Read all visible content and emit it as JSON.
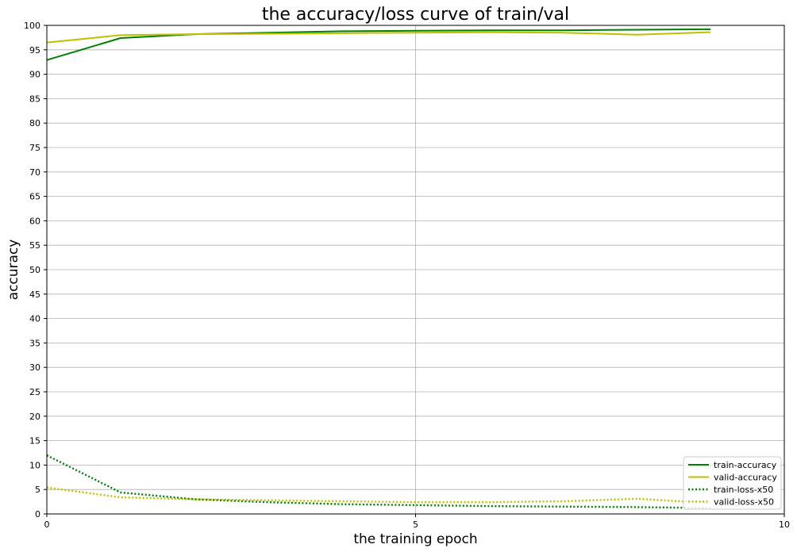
{
  "chart_data": {
    "type": "line",
    "title": "the accuracy/loss curve of train/val",
    "xlabel": "the training epoch",
    "ylabel": "accuracy",
    "xlim": [
      0,
      10
    ],
    "ylim": [
      0,
      100
    ],
    "x_ticks": [
      0,
      5,
      10
    ],
    "y_ticks": [
      0,
      5,
      10,
      15,
      20,
      25,
      30,
      35,
      40,
      45,
      50,
      55,
      60,
      65,
      70,
      75,
      80,
      85,
      90,
      95,
      100
    ],
    "grid": true,
    "legend_position": "lower-right",
    "x": [
      0,
      1,
      2,
      3,
      4,
      5,
      6,
      7,
      8,
      9
    ],
    "series": [
      {
        "name": "train-accuracy",
        "color": "#008000",
        "style": "solid",
        "values": [
          92.9,
          97.4,
          98.2,
          98.5,
          98.8,
          98.9,
          99.0,
          99.0,
          99.1,
          99.2
        ]
      },
      {
        "name": "valid-accuracy",
        "color": "#bfbf00",
        "style": "solid",
        "values": [
          96.5,
          98.0,
          98.2,
          98.3,
          98.4,
          98.5,
          98.6,
          98.5,
          98.1,
          98.6
        ]
      },
      {
        "name": "train-loss-x50",
        "color": "#008000",
        "style": "dotted",
        "values": [
          12.0,
          4.4,
          3.0,
          2.4,
          2.0,
          1.8,
          1.6,
          1.5,
          1.4,
          1.2
        ]
      },
      {
        "name": "valid-loss-x50",
        "color": "#bfbf00",
        "style": "dotted",
        "values": [
          5.4,
          3.4,
          3.0,
          2.8,
          2.6,
          2.4,
          2.4,
          2.6,
          3.1,
          2.2
        ]
      }
    ]
  }
}
